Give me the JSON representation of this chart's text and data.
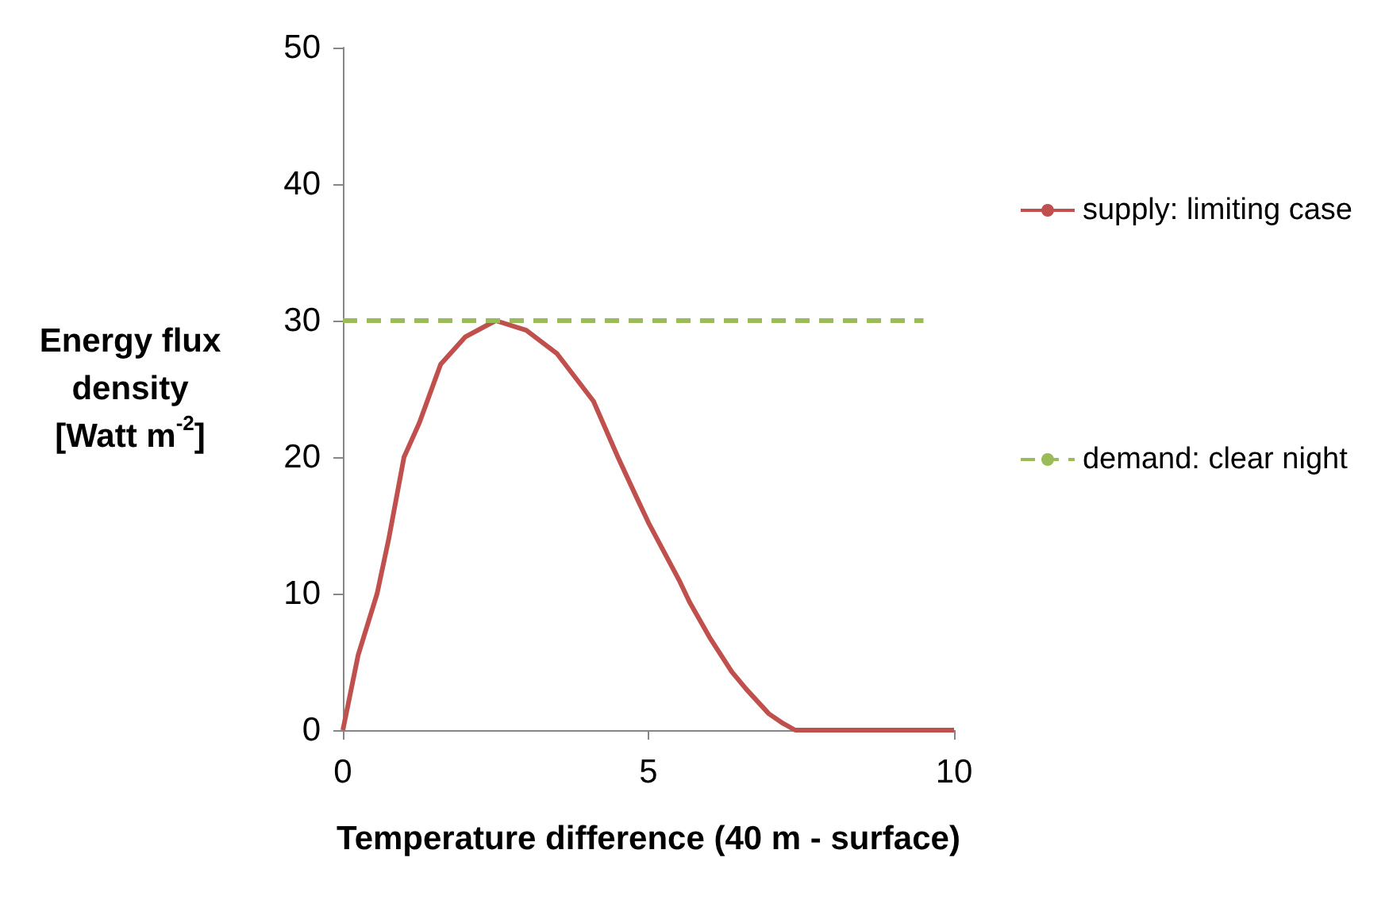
{
  "chart_data": {
    "type": "line",
    "xlabel": "Temperature difference (40 m - surface)",
    "ylabel": "Energy flux density [Watt m$^{-2}$]",
    "xlim": [
      0,
      10
    ],
    "xticks": [
      0,
      5,
      10
    ],
    "ylim": [
      0,
      50
    ],
    "yticks": [
      0,
      10,
      20,
      30,
      40,
      50
    ],
    "grid": false,
    "legend": "right",
    "marker": "none",
    "series": [
      {
        "name": "supply: limiting case",
        "color": "#c0504d",
        "line_style": "solid",
        "x": [
          0,
          0.25,
          0.56,
          0.75,
          1,
          1.25,
          1.6,
          2,
          2.5,
          3,
          3.5,
          4.1,
          4.5,
          4.8,
          5,
          5.5,
          5.67,
          6,
          6.36,
          6.6,
          6.97,
          7.2,
          7.4,
          8,
          9,
          10
        ],
        "values": [
          0,
          5.5,
          10,
          14,
          20,
          22.5,
          26.8,
          28.8,
          30,
          29.3,
          27.6,
          24.1,
          20,
          17.1,
          15.2,
          11,
          9.4,
          6.8,
          4.3,
          3,
          1.2,
          0.5,
          0,
          0,
          0,
          0
        ]
      },
      {
        "name": "demand: clear night",
        "color": "#9bbb59",
        "line_style": "dashed",
        "x": [
          0,
          9.5
        ],
        "values": [
          30,
          30
        ]
      }
    ]
  }
}
